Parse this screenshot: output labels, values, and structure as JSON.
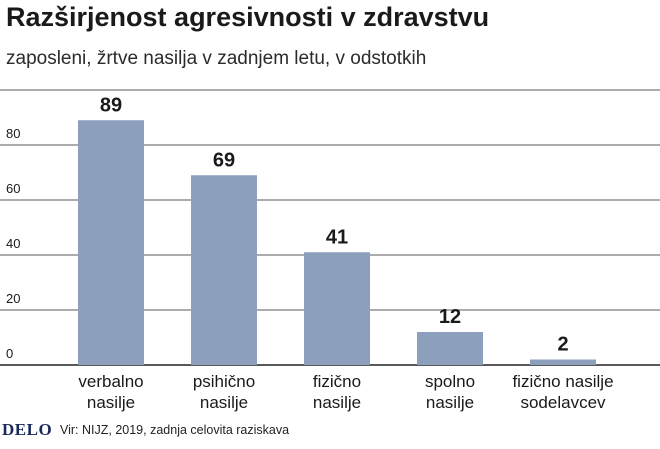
{
  "title": "Razširjenost agresivnosti v zdravstvu",
  "subtitle": "zaposleni, žrtve nasilja v zadnjem letu, v odstotkih",
  "logo": "DELO",
  "source": "Vir: NIJZ, 2019, zadnja celovita raziskava",
  "colors": {
    "bar": "#8c9fbd",
    "grid": "#222222",
    "text": "#1a1a1a"
  },
  "chart_data": {
    "type": "bar",
    "categories": [
      [
        "verbalno",
        "nasilje"
      ],
      [
        "psihično",
        "nasilje"
      ],
      [
        "fizično",
        "nasilje"
      ],
      [
        "spolno",
        "nasilje"
      ],
      [
        "fizično nasilje",
        "sodelavcev"
      ]
    ],
    "values": [
      89,
      69,
      41,
      12,
      2
    ],
    "yticks": [
      0,
      20,
      40,
      60,
      80
    ],
    "ylim": [
      0,
      100
    ],
    "grid": true
  }
}
